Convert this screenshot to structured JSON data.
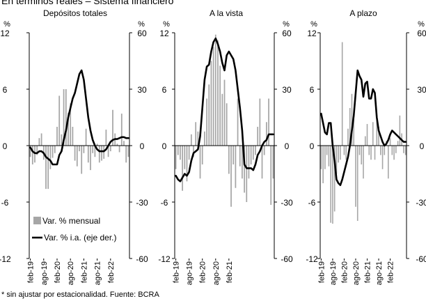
{
  "page_title": "En términos reales – Sistema financiero",
  "footnote": "* sin ajustar por estacionalidad. Fuente: BCRA",
  "colors": {
    "bars": "#a6a6a6",
    "line": "#000000",
    "axis": "#000000"
  },
  "chart_data": [
    {
      "type": "bar+line",
      "title": "Depósitos totales",
      "left_unit": "%",
      "right_unit": "%",
      "ylim_left": [
        -12,
        12
      ],
      "ylim_right": [
        -60,
        60
      ],
      "yticks_left": [
        -12,
        -6,
        0,
        6,
        12
      ],
      "yticks_right": [
        -60,
        -30,
        0,
        30,
        60
      ],
      "xtick_labels": [
        "feb-19",
        "ago-19",
        "feb-20",
        "ago-20",
        "feb-21",
        "ago-21",
        "feb-22"
      ],
      "bar_series": {
        "name": "Var. % mensual",
        "values": [
          -1.2,
          -2.0,
          -1.8,
          -1.0,
          0.8,
          1.3,
          -1.5,
          -4.6,
          -4.6,
          -2.5,
          -1.3,
          -0.8,
          2.0,
          5.3,
          1.2,
          6.0,
          6.0,
          3.5,
          4.5,
          2.0,
          -1.6,
          -2.2,
          -0.6,
          -3.0,
          -0.8,
          1.8,
          -1.8,
          -2.6,
          -0.8,
          -1.2,
          0.2,
          -1.8,
          -1.6,
          -1.4,
          1.7,
          -1.2,
          -0.6,
          3.8,
          1.3,
          0.2,
          -0.7,
          3.4,
          0.5,
          -1.8,
          -1.2
        ]
      },
      "line_series": {
        "name": "Var. % i.a. (eje der.)",
        "values": [
          -1,
          -3,
          -4,
          -4,
          -3,
          -3,
          -4,
          -6,
          -7,
          -8,
          -10,
          -10,
          -10,
          -5,
          -3,
          3,
          8,
          15,
          20,
          25,
          28,
          33,
          38,
          40,
          35,
          25,
          15,
          8,
          3,
          0,
          -2,
          -3,
          -3,
          -3,
          -2,
          0,
          2,
          3,
          3.5,
          3.5,
          4,
          4.5,
          4.5,
          4,
          4
        ]
      }
    },
    {
      "type": "bar+line",
      "title": "A la vista",
      "left_unit": "%",
      "right_unit": "%",
      "ylim_left": [
        -12,
        12
      ],
      "ylim_right": [
        -60,
        60
      ],
      "yticks_left": [
        -12,
        -6,
        0,
        6,
        12
      ],
      "yticks_right": [
        -60,
        -30,
        0,
        30,
        60
      ],
      "xtick_labels": [
        "feb-19",
        "ago-19",
        "feb-20",
        "ago-20",
        "feb-21"
      ],
      "bar_series": {
        "name": "Var. % mensual",
        "values": [
          -2.5,
          -1.0,
          -1.5,
          -4.8,
          -2.5,
          -3.8,
          -1.5,
          1.2,
          -1.2,
          2.5,
          1.5,
          -3.5,
          -2.0,
          1.5,
          5.0,
          6.5,
          9.0,
          10.5,
          11.8,
          11.2,
          8.5,
          5.5,
          7.0,
          4.5,
          -3.0,
          -6.5,
          -2.0,
          -4.5,
          5.0,
          -2.2,
          -3.5,
          -5.0,
          -6.0,
          -3.5,
          -2.0,
          -1.5,
          -1.0,
          2.0,
          5.0,
          -3.5,
          -1.0,
          2.5,
          5.0,
          -6.3,
          -3.5
        ]
      },
      "line_series": {
        "name": "Var. % i.a. (eje der.)",
        "values": [
          -16,
          -18,
          -19,
          -17,
          -15,
          -16,
          -14,
          -8,
          -4,
          -3,
          -2,
          5,
          20,
          35,
          42,
          43,
          50,
          55,
          57,
          54,
          50,
          44,
          40,
          48,
          50,
          48,
          46,
          40,
          30,
          20,
          8,
          -10,
          -12,
          -12,
          -12,
          -13,
          -10,
          -5,
          -3,
          0,
          2,
          3,
          6,
          6,
          6
        ]
      }
    },
    {
      "type": "bar+line",
      "title": "A plazo",
      "left_unit": "%",
      "right_unit": "%",
      "ylim_left": [
        -12,
        12
      ],
      "ylim_right": [
        -60,
        60
      ],
      "yticks_left": [
        -12,
        -6,
        0,
        6,
        12
      ],
      "yticks_right": [
        -60,
        -30,
        0,
        30,
        60
      ],
      "xtick_labels": [
        "feb-19",
        "ago-19",
        "feb-20",
        "ago-20",
        "feb-21",
        "ago-21",
        "feb-22"
      ],
      "bar_series": {
        "name": "Var. % mensual",
        "values": [
          -2.5,
          -4.0,
          -2.5,
          -1.0,
          -2.2,
          -8.2,
          -8.3,
          -7.0,
          -3.0,
          -1.8,
          -1.5,
          11.0,
          -1.0,
          -1.5,
          1.8,
          4.0,
          5.5,
          3.3,
          -6.5,
          -8.0,
          -1.0,
          -2.0,
          -3.5,
          1.0,
          2.3,
          -1.0,
          -1.5,
          2.5,
          -1.5,
          3.0,
          2.0,
          -1.0,
          -2.5,
          -1.0,
          0.5,
          -3.5,
          0.8,
          -1.0,
          -1.5,
          -0.8,
          0.5,
          3.2,
          1.3,
          -0.8,
          -1.0
        ]
      },
      "line_series": {
        "name": "Var. % i.a. (eje der.)",
        "values": [
          17,
          12,
          7,
          6,
          12,
          12,
          0,
          -8,
          -18,
          -20,
          -21,
          -18,
          -14,
          -10,
          -6,
          0,
          8,
          16,
          28,
          40,
          37,
          35,
          26,
          33,
          34,
          25,
          25,
          30,
          28,
          15,
          8,
          5,
          2,
          0,
          1,
          3,
          6,
          8,
          7,
          6,
          5,
          4,
          3,
          2,
          2
        ]
      }
    }
  ],
  "legend": {
    "bar_label": "Var. % mensual",
    "line_label": "Var. % i.a. (eje der.)"
  }
}
